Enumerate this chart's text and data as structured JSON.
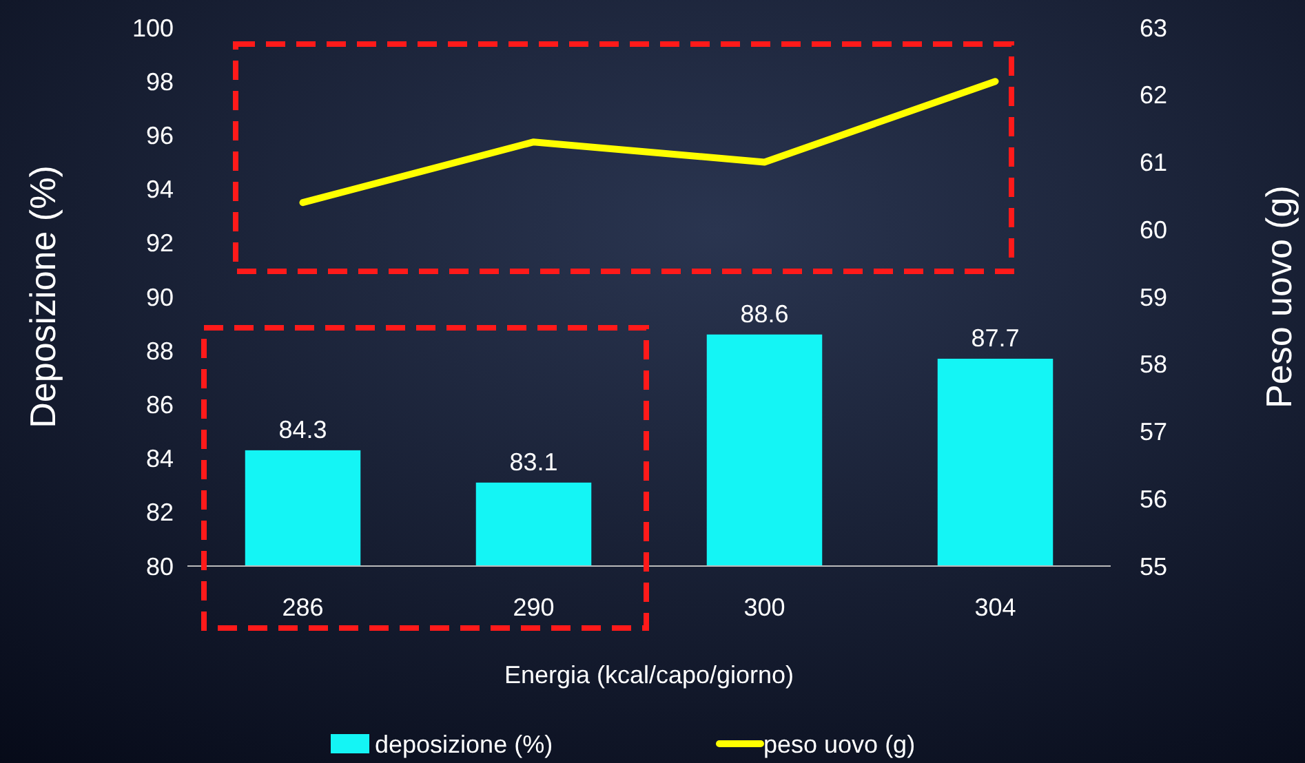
{
  "chart_data": {
    "type": "bar",
    "xlabel": "Energia (kcal/capo/giorno)",
    "ylabel": "Deposizione (%)",
    "y2label": "Peso uovo (g)",
    "categories": [
      "286",
      "290",
      "300",
      "304"
    ],
    "series": [
      {
        "name": "deposizione (%)",
        "color": "#14f5f5",
        "values": [
          84.3,
          83.1,
          88.6,
          87.7
        ],
        "value_labels": [
          "84.3",
          "83.1",
          "88.6",
          "87.7"
        ]
      },
      {
        "name": "peso uovo (g)",
        "type": "line",
        "axis": "y2",
        "color": "#ffff00",
        "values": [
          60.4,
          61.3,
          61.0,
          62.2
        ]
      }
    ],
    "ylim": [
      80,
      100
    ],
    "yticks": [
      80,
      82,
      84,
      86,
      88,
      90,
      92,
      94,
      96,
      98,
      100
    ],
    "y2lim": [
      55,
      63
    ],
    "y2ticks": [
      55,
      56,
      57,
      58,
      59,
      60,
      61,
      62,
      63
    ],
    "grid": false,
    "legend": "bottom",
    "marker": "none",
    "line_style": "solid"
  }
}
